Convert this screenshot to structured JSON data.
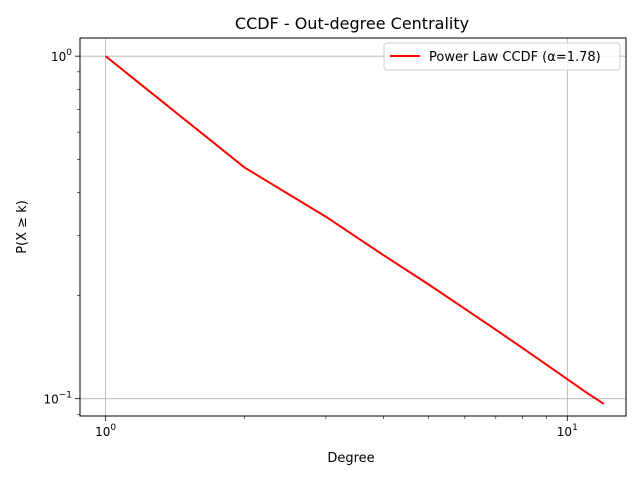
{
  "chart_data": {
    "type": "line",
    "title": "CCDF - Out-degree Centrality",
    "xlabel": "Degree",
    "ylabel": "P(X ≥ k)",
    "xscale": "log",
    "yscale": "log",
    "xlim": [
      0.88,
      13.4
    ],
    "ylim": [
      0.089,
      1.13
    ],
    "grid": true,
    "legend_location": "upper right",
    "series": [
      {
        "name": "Power Law CCDF (α=1.78)",
        "color": "#ff0000",
        "x": [
          1,
          2,
          3,
          4,
          5,
          6,
          7,
          8,
          9,
          10,
          11,
          12
        ],
        "y": [
          1.0,
          0.4729,
          0.3398,
          0.2623,
          0.2158,
          0.183,
          0.159,
          0.1405,
          0.1259,
          0.114,
          0.1042,
          0.0965
        ]
      }
    ],
    "xticks": [
      {
        "value": 1,
        "base": "10",
        "exp": "0"
      },
      {
        "value": 10,
        "base": "10",
        "exp": "1"
      }
    ],
    "yticks": [
      {
        "value": 1,
        "base": "10",
        "exp": "0"
      },
      {
        "value": 0.1,
        "base": "10",
        "exp": "−1"
      }
    ]
  }
}
